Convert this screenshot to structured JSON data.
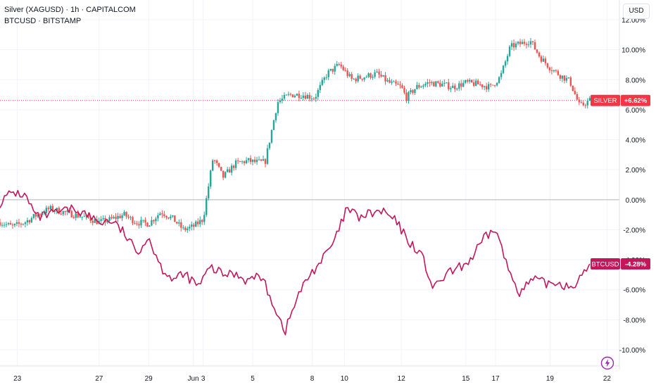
{
  "legend": {
    "series1": "Silver (XAGUSD) · 1h · CAPITALCOM",
    "series2": "BTCUSD · BITSTAMP"
  },
  "currency_button": "USD",
  "chart_data": {
    "type": "line",
    "y_unit": "percent change",
    "ylim": [
      -10.5,
      12.2
    ],
    "y_ticks": [
      "12.00%",
      "10.00%",
      "8.00%",
      "6.00%",
      "4.00%",
      "2.00%",
      "0.00%",
      "-2.00%",
      "-4.00%",
      "-6.00%",
      "-8.00%",
      "-10.00%"
    ],
    "y_tick_values": [
      12,
      10,
      8,
      6,
      4,
      2,
      0,
      -2,
      -4,
      -6,
      -8,
      -10
    ],
    "x_ticks": [
      "23",
      "27",
      "29",
      "Jun",
      "3",
      "5",
      "8",
      "10",
      "12",
      "15",
      "17",
      "19",
      "22"
    ],
    "x_tick_pos": [
      0.7,
      4,
      6,
      7.8,
      8.2,
      10.2,
      12.6,
      13.9,
      16.2,
      18.8,
      20,
      22.2,
      24.5
    ],
    "zero_line": 0,
    "grid": true,
    "series": [
      {
        "name": "SILVER",
        "kind": "candlestick",
        "up_color": "#26a69a",
        "down_color": "#ef5350",
        "last_value": 6.62,
        "last_label": "+6.62%",
        "badge_color": "#f23645",
        "x": [
          0,
          0.5,
          1,
          1.5,
          2,
          2.5,
          3,
          3.5,
          4,
          4.5,
          5,
          5.5,
          6,
          6.5,
          7,
          7.4,
          7.8,
          8.2,
          8.6,
          9,
          9.5,
          10,
          10.3,
          10.7,
          11.2,
          11.7,
          12.2,
          12.7,
          13.2,
          13.7,
          14.2,
          14.7,
          15.2,
          15.7,
          16.2,
          16.4,
          16.8,
          17.3,
          17.8,
          18.3,
          18.8,
          19.3,
          19.8,
          20.2,
          20.6,
          21,
          21.4,
          21.8,
          22.2,
          22.6,
          23,
          23.4,
          23.8
        ],
        "values": [
          -1.5,
          -1.8,
          -1.5,
          -1.0,
          -0.6,
          -0.8,
          -1.0,
          -1.2,
          -1.5,
          -1.3,
          -1.0,
          -1.5,
          -1.6,
          -0.8,
          -1.3,
          -2.0,
          -1.8,
          -1.3,
          2.8,
          1.5,
          2.4,
          2.6,
          2.5,
          2.5,
          6.5,
          7.0,
          7.0,
          6.8,
          8.4,
          9.0,
          8.0,
          8.2,
          8.4,
          7.8,
          7.5,
          6.8,
          7.5,
          7.8,
          7.7,
          7.5,
          7.8,
          7.7,
          7.5,
          8.2,
          10.2,
          10.4,
          10.6,
          9.5,
          8.8,
          8.3,
          7.9,
          6.2,
          6.62
        ]
      },
      {
        "name": "BTCUSD",
        "kind": "line",
        "color": "#c2185b",
        "last_value": -4.28,
        "last_label": "-4.28%",
        "badge_color": "#c2185b",
        "x": [
          0,
          0.5,
          1,
          1.5,
          2,
          2.5,
          3,
          3.5,
          4,
          4.5,
          5,
          5.5,
          6,
          6.5,
          7,
          7.5,
          8,
          8.5,
          9,
          9.5,
          10,
          10.5,
          11,
          11.5,
          12,
          12.5,
          13,
          13.5,
          14,
          14.5,
          15,
          15.5,
          16,
          16.5,
          17,
          17.5,
          18,
          18.5,
          19,
          19.5,
          20,
          20.5,
          21,
          21.5,
          22,
          22.5,
          23,
          23.5,
          23.8
        ],
        "values": [
          -0.2,
          0.5,
          0.3,
          -1.2,
          -1.0,
          -0.8,
          -0.6,
          -1.0,
          -1.5,
          -1.4,
          -2.2,
          -3.5,
          -2.5,
          -4.5,
          -5.3,
          -5.0,
          -5.8,
          -4.5,
          -5.0,
          -4.9,
          -5.4,
          -5.0,
          -6.8,
          -8.8,
          -6.5,
          -5.0,
          -4.0,
          -2.8,
          -0.6,
          -1.2,
          -0.9,
          -0.8,
          -1.5,
          -2.8,
          -3.6,
          -6.0,
          -5.0,
          -4.6,
          -4.0,
          -2.7,
          -1.9,
          -4.6,
          -6.2,
          -5.3,
          -5.6,
          -5.5,
          -5.8,
          -5.2,
          -4.28
        ]
      }
    ]
  }
}
